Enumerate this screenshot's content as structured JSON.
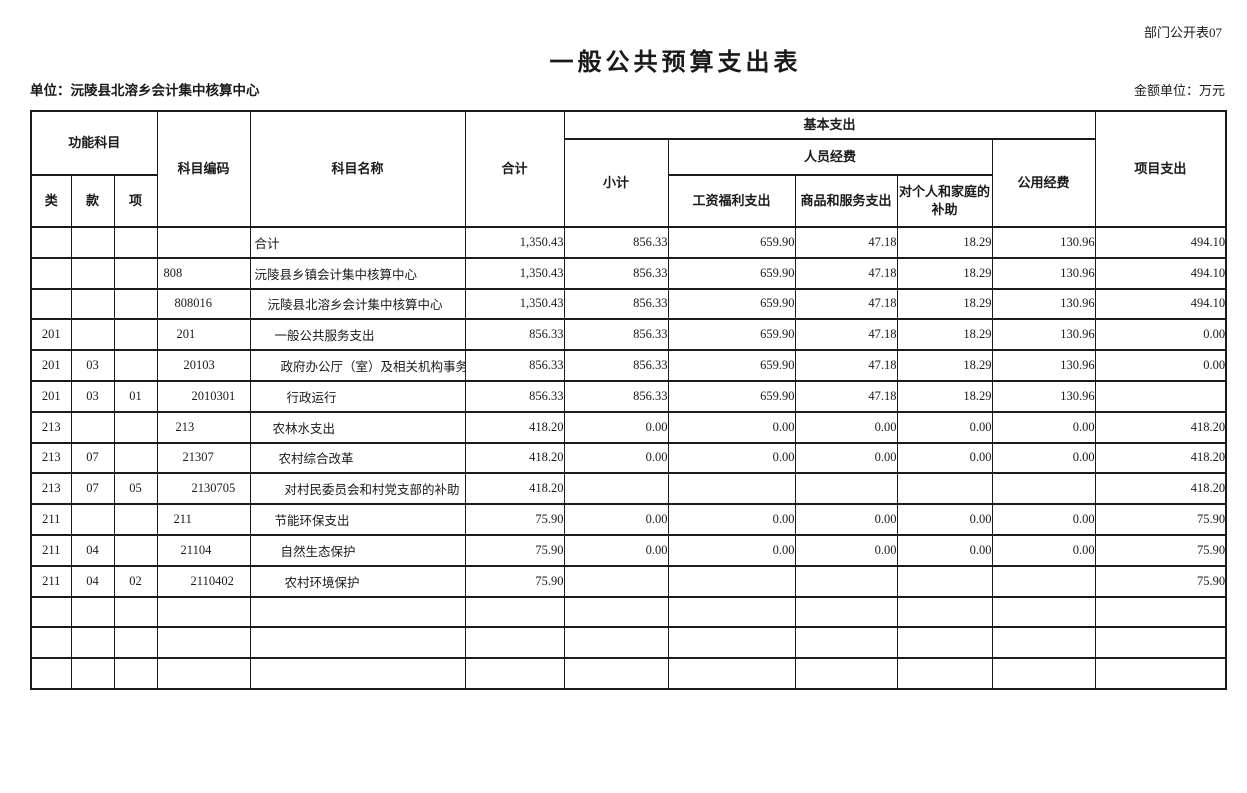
{
  "page": {
    "corner_label": "部门公开表07",
    "title": "一般公共预算支出表",
    "unit_label": "单位：沅陵县北溶乡会计集中核算中心",
    "amount_unit_label": "金额单位：万元"
  },
  "table": {
    "headers": {
      "functional_subject": "功能科目",
      "category": "类",
      "section": "款",
      "item": "项",
      "subject_code": "科目编码",
      "subject_name": "科目名称",
      "total": "合计",
      "basic_expenditure": "基本支出",
      "subtotal": "小计",
      "personnel_funds": "人员经费",
      "wages_benefits": "工资福利支出",
      "goods_services": "商品和服务支出",
      "individual_family": "对个人和家庭的补助",
      "public_funds": "公用经费",
      "project_expenditure": "项目支出"
    },
    "rows": [
      {
        "lei": "",
        "kuan": "",
        "xiang": "",
        "code": "",
        "code_indent": 4,
        "name": "合计",
        "name_indent": 4,
        "total": "1,350.43",
        "subtotal": "856.33",
        "wages": "659.90",
        "goods": "47.18",
        "family": "18.29",
        "public": "130.96",
        "project": "494.10"
      },
      {
        "lei": "",
        "kuan": "",
        "xiang": "",
        "code": "808",
        "code_indent": 6,
        "name": "沅陵县乡镇会计集中核算中心",
        "name_indent": 4,
        "total": "1,350.43",
        "subtotal": "856.33",
        "wages": "659.90",
        "goods": "47.18",
        "family": "18.29",
        "public": "130.96",
        "project": "494.10"
      },
      {
        "lei": "",
        "kuan": "",
        "xiang": "",
        "code": "808016",
        "code_indent": 17,
        "name": "沅陵县北溶乡会计集中核算中心",
        "name_indent": 17,
        "total": "1,350.43",
        "subtotal": "856.33",
        "wages": "659.90",
        "goods": "47.18",
        "family": "18.29",
        "public": "130.96",
        "project": "494.10"
      },
      {
        "lei": "201",
        "kuan": "",
        "xiang": "",
        "code": "201",
        "code_indent": 19,
        "name": "一般公共服务支出",
        "name_indent": 24,
        "total": "856.33",
        "subtotal": "856.33",
        "wages": "659.90",
        "goods": "47.18",
        "family": "18.29",
        "public": "130.96",
        "project": "0.00"
      },
      {
        "lei": "201",
        "kuan": "03",
        "xiang": "",
        "code": "20103",
        "code_indent": 26,
        "name": "政府办公厅（室）及相关机构事务",
        "name_indent": 30,
        "total": "856.33",
        "subtotal": "856.33",
        "wages": "659.90",
        "goods": "47.18",
        "family": "18.29",
        "public": "130.96",
        "project": "0.00"
      },
      {
        "lei": "201",
        "kuan": "03",
        "xiang": "01",
        "code": "2010301",
        "code_indent": 34,
        "name": "行政运行",
        "name_indent": 36,
        "total": "856.33",
        "subtotal": "856.33",
        "wages": "659.90",
        "goods": "47.18",
        "family": "18.29",
        "public": "130.96",
        "project": ""
      },
      {
        "lei": "213",
        "kuan": "",
        "xiang": "",
        "code": "213",
        "code_indent": 18,
        "name": "农林水支出",
        "name_indent": 22,
        "total": "418.20",
        "subtotal": "0.00",
        "wages": "0.00",
        "goods": "0.00",
        "family": "0.00",
        "public": "0.00",
        "project": "418.20"
      },
      {
        "lei": "213",
        "kuan": "07",
        "xiang": "",
        "code": "21307",
        "code_indent": 25,
        "name": "农村综合改革",
        "name_indent": 28,
        "total": "418.20",
        "subtotal": "0.00",
        "wages": "0.00",
        "goods": "0.00",
        "family": "0.00",
        "public": "0.00",
        "project": "418.20"
      },
      {
        "lei": "213",
        "kuan": "07",
        "xiang": "05",
        "code": "2130705",
        "code_indent": 34,
        "name": "对村民委员会和村党支部的补助",
        "name_indent": 34,
        "total": "418.20",
        "subtotal": "",
        "wages": "",
        "goods": "",
        "family": "",
        "public": "",
        "project": "418.20"
      },
      {
        "lei": "211",
        "kuan": "",
        "xiang": "",
        "code": "211",
        "code_indent": 16,
        "name": "节能环保支出",
        "name_indent": 24,
        "total": "75.90",
        "subtotal": "0.00",
        "wages": "0.00",
        "goods": "0.00",
        "family": "0.00",
        "public": "0.00",
        "project": "75.90"
      },
      {
        "lei": "211",
        "kuan": "04",
        "xiang": "",
        "code": "21104",
        "code_indent": 23,
        "name": "自然生态保护",
        "name_indent": 30,
        "total": "75.90",
        "subtotal": "0.00",
        "wages": "0.00",
        "goods": "0.00",
        "family": "0.00",
        "public": "0.00",
        "project": "75.90"
      },
      {
        "lei": "211",
        "kuan": "04",
        "xiang": "02",
        "code": "2110402",
        "code_indent": 33,
        "name": "农村环境保护",
        "name_indent": 34,
        "total": "75.90",
        "subtotal": "",
        "wages": "",
        "goods": "",
        "family": "",
        "public": "",
        "project": "75.90"
      },
      {
        "lei": "",
        "kuan": "",
        "xiang": "",
        "code": "",
        "name": "",
        "total": "",
        "subtotal": "",
        "wages": "",
        "goods": "",
        "family": "",
        "public": "",
        "project": ""
      },
      {
        "lei": "",
        "kuan": "",
        "xiang": "",
        "code": "",
        "name": "",
        "total": "",
        "subtotal": "",
        "wages": "",
        "goods": "",
        "family": "",
        "public": "",
        "project": ""
      },
      {
        "lei": "",
        "kuan": "",
        "xiang": "",
        "code": "",
        "name": "",
        "total": "",
        "subtotal": "",
        "wages": "",
        "goods": "",
        "family": "",
        "public": "",
        "project": ""
      }
    ]
  }
}
